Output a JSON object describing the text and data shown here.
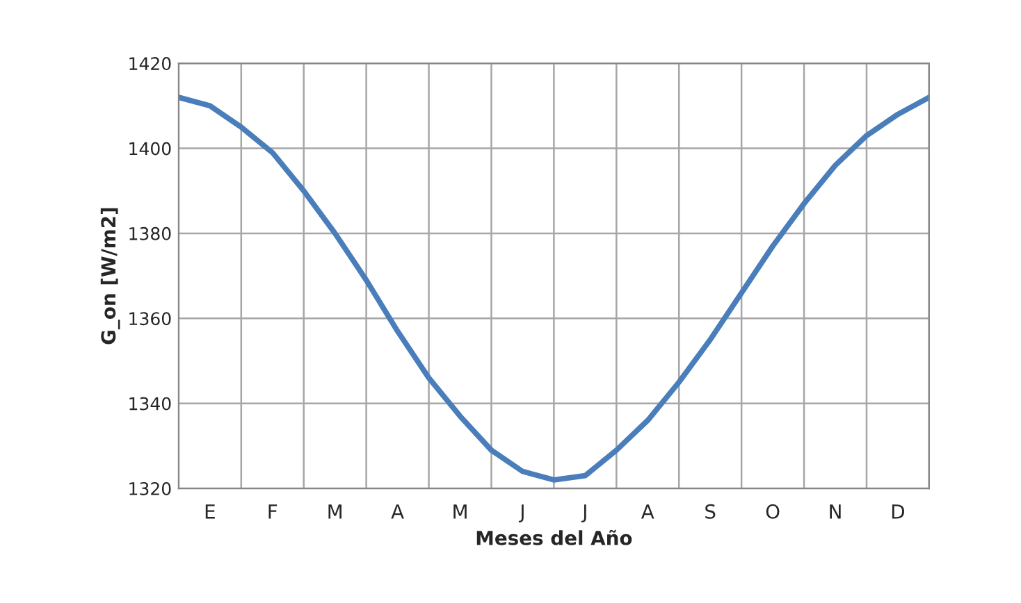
{
  "chart_data": {
    "type": "line",
    "xlabel": "Meses del Año",
    "ylabel": "G_on [W/m2]",
    "categories": [
      null,
      "E",
      null,
      "F",
      null,
      "M",
      null,
      "A",
      null,
      "M",
      null,
      "J",
      null,
      "J",
      null,
      "A",
      null,
      "S",
      null,
      "O",
      null,
      "N",
      null,
      "D",
      null
    ],
    "series": [
      {
        "color": "#4a7ebb",
        "values": [
          1412,
          1410,
          1405,
          1399,
          1390,
          1380,
          1369,
          1357,
          1346,
          1337,
          1329,
          1324,
          1322,
          1323,
          1329,
          1336,
          1345,
          1355,
          1366,
          1377,
          1387,
          1396,
          1403,
          1408,
          1412
        ]
      }
    ],
    "ylim": [
      1320,
      1420
    ],
    "yticks": [
      1320,
      1340,
      1360,
      1380,
      1400,
      1420
    ],
    "grid": true,
    "marker": "none",
    "line_style": "solid"
  }
}
